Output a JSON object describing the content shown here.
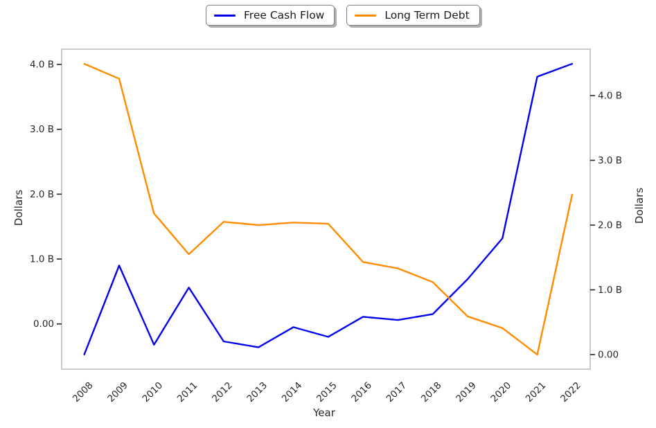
{
  "chart_data": {
    "type": "line",
    "title": "",
    "x": [
      2008,
      2009,
      2010,
      2011,
      2012,
      2013,
      2014,
      2015,
      2016,
      2017,
      2018,
      2019,
      2020,
      2021,
      2022
    ],
    "series": [
      {
        "name": "Free Cash Flow",
        "axis": "left",
        "color": "#0000ee",
        "values": [
          -0.47,
          0.9,
          -0.32,
          0.56,
          -0.27,
          -0.36,
          -0.05,
          -0.2,
          0.11,
          0.06,
          0.15,
          0.69,
          1.32,
          3.81,
          4.01
        ]
      },
      {
        "name": "Long Term Debt",
        "axis": "right",
        "color": "#ff8c00",
        "values": [
          4.49,
          4.26,
          2.18,
          1.55,
          2.05,
          2.0,
          2.04,
          2.02,
          1.43,
          1.33,
          1.12,
          0.59,
          0.41,
          0.0,
          2.47
        ]
      }
    ],
    "xlabel": "Year",
    "ylabel_left": "Dollars",
    "ylabel_right": "Dollars",
    "ylim_left": [
      -0.69,
      4.23
    ],
    "ylim_right": [
      -0.22,
      4.71
    ],
    "yticks_left": {
      "values": [
        0,
        1,
        2,
        3,
        4
      ],
      "labels": [
        "0.00",
        "1.0 B",
        "2.0 B",
        "3.0 B",
        "4.0 B"
      ]
    },
    "yticks_right": {
      "values": [
        0,
        1,
        2,
        3,
        4
      ],
      "labels": [
        "0.00",
        "1.0 B",
        "2.0 B",
        "3.0 B",
        "4.0 B"
      ]
    },
    "xtick_labels": [
      "2008",
      "2009",
      "2010",
      "2011",
      "2012",
      "2013",
      "2014",
      "2015",
      "2016",
      "2017",
      "2018",
      "2019",
      "2020",
      "2021",
      "2022"
    ],
    "xtick_rotation_deg": 45,
    "grid": false,
    "legend_position": "upper center, two separate boxes"
  },
  "colors": {
    "spine": "#c9c9c9",
    "tick": "#262626",
    "text": "#262626",
    "background": "#ffffff"
  }
}
